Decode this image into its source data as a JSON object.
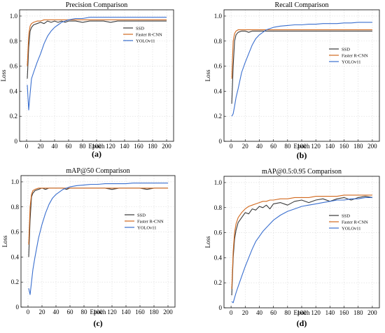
{
  "colors": {
    "SSD": "#3a3a3a",
    "Faster R-CNN": "#d2691e",
    "YOLOv11": "#3a6fcf"
  },
  "chart_data": [
    {
      "type": "line",
      "panel_label": "(a)",
      "title": "Precision Comparison",
      "xlabel": "Epoch",
      "ylabel": "Loss",
      "xlim": [
        -10,
        210
      ],
      "ylim": [
        0,
        1.05
      ],
      "xticks": [
        0,
        20,
        40,
        60,
        80,
        100,
        120,
        140,
        160,
        180,
        200
      ],
      "yticks": [
        0,
        0.2,
        0.4,
        0.6,
        0.8,
        1.0
      ],
      "x": [
        1,
        3,
        5,
        7,
        10,
        15,
        20,
        25,
        30,
        35,
        40,
        45,
        50,
        55,
        60,
        70,
        80,
        90,
        100,
        110,
        120,
        130,
        140,
        150,
        160,
        170,
        180,
        190,
        200
      ],
      "series": [
        {
          "name": "SSD",
          "values": [
            0.5,
            0.75,
            0.88,
            0.91,
            0.93,
            0.94,
            0.95,
            0.94,
            0.96,
            0.95,
            0.96,
            0.95,
            0.96,
            0.95,
            0.96,
            0.96,
            0.95,
            0.96,
            0.96,
            0.96,
            0.95,
            0.96,
            0.96,
            0.96,
            0.96,
            0.96,
            0.96,
            0.96,
            0.96
          ]
        },
        {
          "name": "Faster R-CNN",
          "values": [
            0.6,
            0.85,
            0.92,
            0.94,
            0.95,
            0.96,
            0.96,
            0.97,
            0.97,
            0.97,
            0.97,
            0.97,
            0.97,
            0.97,
            0.97,
            0.97,
            0.97,
            0.97,
            0.97,
            0.97,
            0.97,
            0.97,
            0.97,
            0.97,
            0.97,
            0.97,
            0.97,
            0.97,
            0.97
          ]
        },
        {
          "name": "YOLOv11",
          "values": [
            0.45,
            0.25,
            0.38,
            0.5,
            0.55,
            0.63,
            0.7,
            0.78,
            0.84,
            0.88,
            0.91,
            0.93,
            0.95,
            0.96,
            0.97,
            0.98,
            0.98,
            0.99,
            0.99,
            0.99,
            0.99,
            0.99,
            0.99,
            0.99,
            0.99,
            0.99,
            0.99,
            0.99,
            0.99
          ]
        }
      ],
      "legend_position": "top-right"
    },
    {
      "type": "line",
      "panel_label": "(b)",
      "title": "Recall Comparison",
      "xlabel": "Epoch",
      "ylabel": "Loss",
      "xlim": [
        -10,
        210
      ],
      "ylim": [
        0,
        1.05
      ],
      "xticks": [
        0,
        20,
        40,
        60,
        80,
        100,
        120,
        140,
        160,
        180,
        200
      ],
      "yticks": [
        0,
        0.2,
        0.4,
        0.6,
        0.8,
        1.0
      ],
      "x": [
        1,
        3,
        5,
        7,
        10,
        15,
        20,
        25,
        30,
        35,
        40,
        45,
        50,
        55,
        60,
        70,
        80,
        90,
        100,
        110,
        120,
        130,
        140,
        150,
        160,
        170,
        180,
        190,
        200
      ],
      "series": [
        {
          "name": "SSD",
          "values": [
            0.3,
            0.6,
            0.8,
            0.85,
            0.87,
            0.88,
            0.88,
            0.87,
            0.88,
            0.88,
            0.88,
            0.88,
            0.88,
            0.88,
            0.88,
            0.88,
            0.88,
            0.88,
            0.88,
            0.88,
            0.88,
            0.88,
            0.88,
            0.88,
            0.88,
            0.88,
            0.88,
            0.88,
            0.88
          ]
        },
        {
          "name": "Faster R-CNN",
          "values": [
            0.5,
            0.8,
            0.86,
            0.88,
            0.89,
            0.89,
            0.89,
            0.89,
            0.89,
            0.89,
            0.89,
            0.89,
            0.89,
            0.89,
            0.89,
            0.89,
            0.89,
            0.89,
            0.89,
            0.89,
            0.89,
            0.89,
            0.89,
            0.89,
            0.89,
            0.89,
            0.89,
            0.89,
            0.89
          ]
        },
        {
          "name": "YOLOv11",
          "values": [
            0.2,
            0.22,
            0.28,
            0.35,
            0.42,
            0.55,
            0.63,
            0.7,
            0.77,
            0.82,
            0.85,
            0.87,
            0.89,
            0.9,
            0.91,
            0.92,
            0.925,
            0.93,
            0.93,
            0.935,
            0.935,
            0.94,
            0.94,
            0.94,
            0.945,
            0.945,
            0.95,
            0.95,
            0.95
          ]
        }
      ],
      "legend_position": "right"
    },
    {
      "type": "line",
      "panel_label": "(c)",
      "title": "mAP@50  Comparison",
      "xlabel": "Epoch",
      "ylabel": "Loss",
      "xlim": [
        -10,
        210
      ],
      "ylim": [
        0,
        1.05
      ],
      "xticks": [
        0,
        20,
        40,
        60,
        80,
        100,
        120,
        140,
        160,
        180,
        200
      ],
      "yticks": [
        0,
        0.2,
        0.4,
        0.6,
        0.8,
        1.0
      ],
      "x": [
        1,
        3,
        5,
        7,
        10,
        15,
        20,
        25,
        30,
        35,
        40,
        45,
        50,
        55,
        60,
        70,
        80,
        90,
        100,
        110,
        120,
        130,
        140,
        150,
        160,
        170,
        180,
        190,
        200
      ],
      "series": [
        {
          "name": "SSD",
          "values": [
            0.4,
            0.7,
            0.88,
            0.91,
            0.93,
            0.94,
            0.95,
            0.94,
            0.95,
            0.95,
            0.95,
            0.95,
            0.95,
            0.94,
            0.95,
            0.95,
            0.95,
            0.95,
            0.95,
            0.95,
            0.94,
            0.95,
            0.95,
            0.95,
            0.95,
            0.94,
            0.95,
            0.95,
            0.95
          ]
        },
        {
          "name": "Faster R-CNN",
          "values": [
            0.5,
            0.8,
            0.9,
            0.93,
            0.94,
            0.95,
            0.95,
            0.95,
            0.95,
            0.95,
            0.95,
            0.95,
            0.95,
            0.95,
            0.95,
            0.95,
            0.95,
            0.95,
            0.95,
            0.95,
            0.95,
            0.95,
            0.95,
            0.95,
            0.95,
            0.95,
            0.95,
            0.95,
            0.95
          ]
        },
        {
          "name": "YOLOv11",
          "values": [
            0.15,
            0.1,
            0.2,
            0.3,
            0.4,
            0.55,
            0.66,
            0.75,
            0.82,
            0.87,
            0.9,
            0.92,
            0.94,
            0.95,
            0.96,
            0.97,
            0.975,
            0.98,
            0.98,
            0.985,
            0.985,
            0.985,
            0.985,
            0.99,
            0.99,
            0.99,
            0.99,
            0.99,
            0.99
          ]
        }
      ],
      "legend_position": "right"
    },
    {
      "type": "line",
      "panel_label": "(d)",
      "title": "mAP@0.5:0.95  Comparison",
      "xlabel": "Epoch",
      "ylabel": "Loss",
      "xlim": [
        -10,
        210
      ],
      "ylim": [
        0,
        1.05
      ],
      "xticks": [
        0,
        20,
        40,
        60,
        80,
        100,
        120,
        140,
        160,
        180,
        200
      ],
      "yticks": [
        0,
        0.2,
        0.4,
        0.6,
        0.8,
        1.0
      ],
      "x": [
        1,
        3,
        5,
        7,
        10,
        15,
        20,
        25,
        30,
        35,
        40,
        45,
        50,
        55,
        60,
        70,
        80,
        90,
        100,
        110,
        120,
        130,
        140,
        150,
        160,
        170,
        180,
        190,
        200
      ],
      "series": [
        {
          "name": "SSD",
          "values": [
            0.1,
            0.4,
            0.55,
            0.62,
            0.68,
            0.72,
            0.76,
            0.75,
            0.79,
            0.78,
            0.81,
            0.8,
            0.82,
            0.79,
            0.83,
            0.84,
            0.82,
            0.85,
            0.86,
            0.84,
            0.86,
            0.87,
            0.85,
            0.87,
            0.88,
            0.86,
            0.88,
            0.89,
            0.88
          ]
        },
        {
          "name": "Faster R-CNN",
          "values": [
            0.15,
            0.45,
            0.6,
            0.67,
            0.72,
            0.76,
            0.79,
            0.81,
            0.82,
            0.83,
            0.84,
            0.85,
            0.85,
            0.86,
            0.86,
            0.87,
            0.87,
            0.88,
            0.88,
            0.88,
            0.89,
            0.89,
            0.89,
            0.89,
            0.9,
            0.9,
            0.9,
            0.9,
            0.9
          ]
        },
        {
          "name": "YOLOv11",
          "values": [
            0.05,
            0.04,
            0.08,
            0.12,
            0.17,
            0.25,
            0.33,
            0.4,
            0.47,
            0.53,
            0.57,
            0.61,
            0.64,
            0.67,
            0.7,
            0.74,
            0.77,
            0.79,
            0.81,
            0.82,
            0.83,
            0.84,
            0.85,
            0.86,
            0.86,
            0.87,
            0.87,
            0.88,
            0.88
          ]
        }
      ],
      "legend_position": "right"
    }
  ]
}
